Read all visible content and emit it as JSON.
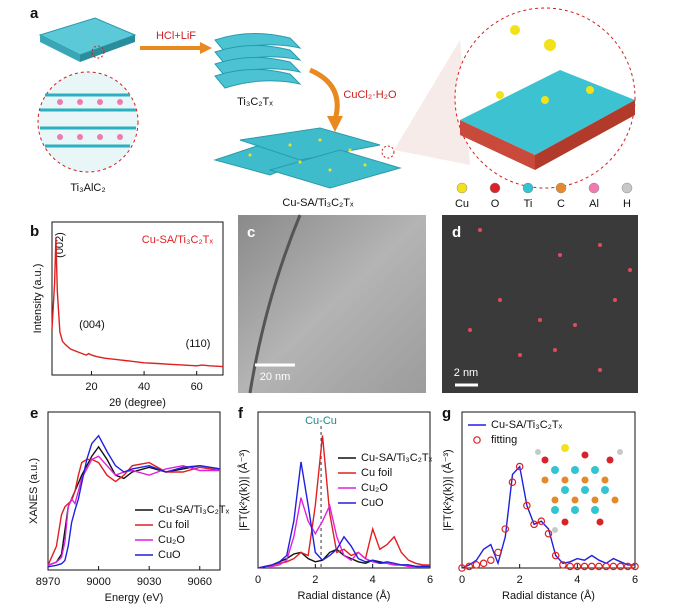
{
  "figure": {
    "a": {
      "panel_label": "a",
      "step1": "HCl+LiF",
      "intermediate": "Ti₃C₂Tₓ",
      "step2": "CuCl₂·H₂O",
      "precursor": "Ti₃AlC₂",
      "product": "Cu-SA/Ti₃C₂Tₓ",
      "atoms": [
        {
          "name": "Cu",
          "color": "#f2e21b"
        },
        {
          "name": "O",
          "color": "#d9232a"
        },
        {
          "name": "Ti",
          "color": "#33c4d1"
        },
        {
          "name": "C",
          "color": "#e48a2a"
        },
        {
          "name": "Al",
          "color": "#f07ab0"
        },
        {
          "name": "H",
          "color": "#c8c8c8"
        }
      ]
    },
    "c": {
      "panel_label": "c",
      "scale_bar": "20 nm"
    },
    "d": {
      "panel_label": "d",
      "scale_bar": "2 nm"
    }
  },
  "chart_data": [
    {
      "type": "line",
      "panel_label": "b",
      "x_label": "2θ (degree)",
      "y_label": "Intensity (a.u.)",
      "x": [
        5,
        6,
        6.5,
        7,
        8,
        9,
        10,
        12,
        15,
        18,
        19,
        20,
        22,
        25,
        30,
        35,
        40,
        45,
        50,
        55,
        60,
        62,
        65,
        70
      ],
      "xlim": [
        5,
        70
      ],
      "xticks": [
        20,
        40,
        60
      ],
      "ylim": [
        0,
        100
      ],
      "legend": "upper right",
      "series": [
        {
          "name": "Cu-SA/Ti₃C₂Tₓ",
          "color": "#e02020",
          "style": "line",
          "values": [
            30,
            60,
            90,
            55,
            28,
            22,
            20,
            17,
            15,
            13,
            14,
            13,
            12,
            11,
            10,
            9,
            8,
            7.5,
            7,
            6.5,
            6,
            6.5,
            6,
            5.5
          ]
        }
      ],
      "annotations": [
        "(002)",
        "(004)",
        "(110)"
      ]
    },
    {
      "type": "line",
      "panel_label": "e",
      "x_label": "Energy (eV)",
      "y_label": "XANES (a.u.)",
      "x": [
        8970,
        8975,
        8978,
        8980,
        8982,
        8984,
        8986,
        8988,
        8990,
        8993,
        8996,
        9000,
        9005,
        9010,
        9015,
        9020,
        9030,
        9040,
        9050,
        9060,
        9072
      ],
      "xlim": [
        8970,
        9072
      ],
      "xticks": [
        8970,
        9000,
        9030,
        9060
      ],
      "ylim": [
        0,
        100
      ],
      "legend": "lower right",
      "series": [
        {
          "name": "Cu-SA/Ti₃C₂Tₓ",
          "color": "#111111",
          "style": "line",
          "values": [
            3,
            5,
            10,
            25,
            40,
            45,
            50,
            55,
            60,
            66,
            72,
            78,
            70,
            60,
            58,
            62,
            65,
            62,
            64,
            66,
            64
          ]
        },
        {
          "name": "Cu foil",
          "color": "#e02020",
          "style": "line",
          "values": [
            3,
            15,
            35,
            40,
            42,
            44,
            50,
            60,
            68,
            70,
            70,
            68,
            60,
            56,
            60,
            66,
            68,
            62,
            62,
            65,
            63
          ]
        },
        {
          "name": "Cu₂O",
          "color": "#e020e0",
          "style": "line",
          "values": [
            3,
            5,
            8,
            18,
            40,
            45,
            42,
            50,
            58,
            64,
            70,
            72,
            66,
            60,
            62,
            63,
            60,
            64,
            66,
            63,
            63
          ]
        },
        {
          "name": "CuO",
          "color": "#2020e0",
          "style": "line",
          "values": [
            2,
            3,
            4,
            6,
            15,
            30,
            38,
            45,
            55,
            70,
            80,
            85,
            75,
            66,
            62,
            64,
            66,
            62,
            65,
            66,
            64
          ]
        }
      ]
    },
    {
      "type": "line",
      "panel_label": "f",
      "x_label": "Radial distance (Å)",
      "y_label": "|FT(k²χ(k))| (Å⁻³)",
      "x": [
        0,
        0.25,
        0.5,
        0.75,
        1,
        1.25,
        1.5,
        1.75,
        2,
        2.25,
        2.5,
        2.75,
        3,
        3.25,
        3.5,
        3.75,
        4,
        4.25,
        4.5,
        4.75,
        5,
        5.25,
        5.5,
        5.75,
        6
      ],
      "xlim": [
        0,
        6
      ],
      "xticks": [
        0,
        2,
        4,
        6
      ],
      "ylim": [
        0,
        100
      ],
      "legend": "center right",
      "reference_line": 2.2,
      "annotations": [
        "Cu-Cu"
      ],
      "series": [
        {
          "name": "Cu-SA/Ti₃C₂Tₓ",
          "color": "#111111",
          "style": "line",
          "values": [
            0,
            1,
            2,
            4,
            6,
            9,
            10,
            6,
            4,
            5,
            10,
            12,
            8,
            6,
            4,
            3,
            5,
            4,
            3,
            2,
            2,
            2,
            1,
            1,
            1
          ]
        },
        {
          "name": "Cu foil",
          "color": "#e02020",
          "style": "line",
          "values": [
            0,
            1,
            2,
            3,
            4,
            6,
            10,
            8,
            40,
            85,
            35,
            10,
            12,
            8,
            10,
            6,
            25,
            12,
            15,
            20,
            10,
            5,
            3,
            2,
            2
          ]
        },
        {
          "name": "Cu₂O",
          "color": "#e020e0",
          "style": "line",
          "values": [
            0,
            1,
            1,
            2,
            5,
            20,
            45,
            30,
            22,
            30,
            40,
            20,
            8,
            5,
            10,
            6,
            4,
            3,
            3,
            2,
            2,
            1,
            1,
            1,
            1
          ]
        },
        {
          "name": "CuO",
          "color": "#2020e0",
          "style": "line",
          "values": [
            0,
            1,
            2,
            4,
            8,
            30,
            68,
            40,
            10,
            5,
            8,
            12,
            20,
            14,
            6,
            4,
            5,
            3,
            4,
            3,
            2,
            2,
            1,
            1,
            1
          ]
        }
      ]
    },
    {
      "type": "line",
      "panel_label": "g",
      "x_label": "Radial distance (Å)",
      "y_label": "|FT(k²χ(k))| (Å⁻³)",
      "x": [
        0,
        0.25,
        0.5,
        0.75,
        1,
        1.25,
        1.5,
        1.75,
        2,
        2.25,
        2.5,
        2.75,
        3,
        3.25,
        3.5,
        3.75,
        4,
        4.25,
        4.5,
        4.75,
        5,
        5.25,
        5.5,
        5.75,
        6
      ],
      "xlim": [
        0,
        6
      ],
      "xticks": [
        0,
        2,
        4,
        6
      ],
      "ylim": [
        0,
        100
      ],
      "legend": "upper left",
      "series": [
        {
          "name": "Cu-SA/Ti₃C₂Tₓ",
          "color": "#2020e0",
          "style": "line",
          "values": [
            0,
            2,
            5,
            12,
            15,
            3,
            20,
            60,
            65,
            40,
            28,
            30,
            25,
            8,
            3,
            4,
            6,
            5,
            8,
            5,
            3,
            6,
            4,
            2,
            2
          ]
        },
        {
          "name": "fitting",
          "color": "#e02020",
          "style": "markers",
          "values": [
            0,
            1,
            2,
            3,
            5,
            10,
            25,
            55,
            65,
            40,
            28,
            30,
            22,
            8,
            2,
            1,
            1,
            1,
            1,
            1,
            1,
            1,
            1,
            1,
            1
          ]
        }
      ]
    }
  ]
}
